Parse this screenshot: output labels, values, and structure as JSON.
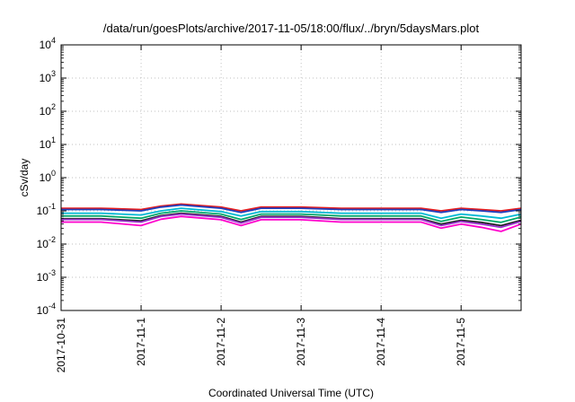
{
  "chart_data": {
    "type": "line",
    "title": "/data/run/goesPlots/archive/2017-11-05/18:00/flux/../bryn/5daysMars.plot",
    "xlabel": "Coordinated Universal Time (UTC)",
    "ylabel": "cSv/day",
    "yscale": "log",
    "ylim": [
      0.0001,
      10000
    ],
    "xlim": [
      "2017-10-31",
      "2017-11-05T18:00"
    ],
    "grid": true,
    "legend": "none",
    "y_ticks": [
      {
        "value": 0.0001,
        "base": "10",
        "exp": "-4"
      },
      {
        "value": 0.001,
        "base": "10",
        "exp": "-3"
      },
      {
        "value": 0.01,
        "base": "10",
        "exp": "-2"
      },
      {
        "value": 0.1,
        "base": "10",
        "exp": "-1"
      },
      {
        "value": 1,
        "base": "10",
        "exp": "0"
      },
      {
        "value": 10,
        "base": "10",
        "exp": "1"
      },
      {
        "value": 100,
        "base": "10",
        "exp": "2"
      },
      {
        "value": 1000,
        "base": "10",
        "exp": "3"
      },
      {
        "value": 10000,
        "base": "10",
        "exp": "4"
      }
    ],
    "x_ticks": [
      "2017-10-31",
      "2017-11-1",
      "2017-11-2",
      "2017-11-3",
      "2017-11-4",
      "2017-11-5"
    ],
    "x": [
      "2017-10-31T00:00",
      "2017-10-31T12:00",
      "2017-11-01T00:00",
      "2017-11-01T06:00",
      "2017-11-01T12:00",
      "2017-11-02T00:00",
      "2017-11-02T06:00",
      "2017-11-02T12:00",
      "2017-11-03T00:00",
      "2017-11-03T12:00",
      "2017-11-04T00:00",
      "2017-11-04T12:00",
      "2017-11-04T18:00",
      "2017-11-05T00:00",
      "2017-11-05T06:00",
      "2017-11-05T12:00",
      "2017-11-05T18:00"
    ],
    "series": [
      {
        "color": "#e41a1c",
        "values": [
          0.12,
          0.12,
          0.11,
          0.14,
          0.16,
          0.13,
          0.1,
          0.13,
          0.13,
          0.12,
          0.12,
          0.12,
          0.1,
          0.12,
          0.11,
          0.1,
          0.12
        ]
      },
      {
        "color": "#1f3fbf",
        "values": [
          0.11,
          0.11,
          0.1,
          0.13,
          0.15,
          0.12,
          0.09,
          0.12,
          0.12,
          0.11,
          0.11,
          0.11,
          0.09,
          0.11,
          0.1,
          0.09,
          0.11
        ]
      },
      {
        "color": "#00b8d4",
        "values": [
          0.085,
          0.085,
          0.075,
          0.1,
          0.12,
          0.095,
          0.07,
          0.095,
          0.095,
          0.085,
          0.085,
          0.085,
          0.06,
          0.08,
          0.07,
          0.06,
          0.08
        ]
      },
      {
        "color": "#00a86b",
        "values": [
          0.07,
          0.07,
          0.06,
          0.085,
          0.1,
          0.08,
          0.055,
          0.08,
          0.08,
          0.07,
          0.07,
          0.07,
          0.048,
          0.065,
          0.055,
          0.045,
          0.065
        ]
      },
      {
        "color": "#222222",
        "values": [
          0.058,
          0.058,
          0.05,
          0.072,
          0.085,
          0.068,
          0.046,
          0.068,
          0.068,
          0.058,
          0.058,
          0.058,
          0.04,
          0.052,
          0.045,
          0.036,
          0.052
        ]
      },
      {
        "color": "#9933cc",
        "values": [
          0.055,
          0.055,
          0.046,
          0.068,
          0.08,
          0.064,
          0.043,
          0.064,
          0.064,
          0.055,
          0.055,
          0.055,
          0.036,
          0.048,
          0.04,
          0.032,
          0.048
        ]
      },
      {
        "color": "#ff00cc",
        "values": [
          0.046,
          0.046,
          0.036,
          0.056,
          0.068,
          0.054,
          0.036,
          0.054,
          0.054,
          0.046,
          0.046,
          0.046,
          0.03,
          0.04,
          0.032,
          0.024,
          0.04
        ]
      }
    ]
  }
}
